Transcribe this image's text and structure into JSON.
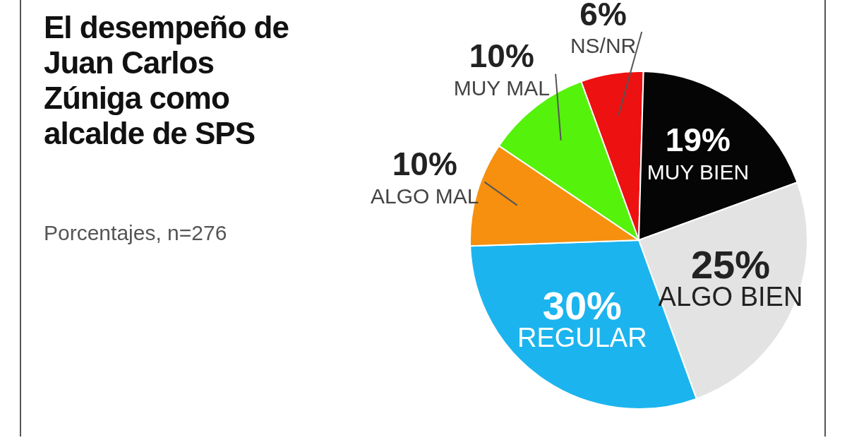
{
  "chart_data": {
    "type": "pie",
    "title": "El desempeño de Juan Carlos Zúniga como alcalde de SPS",
    "subtitle": "Porcentajes, n=276",
    "categories": [
      "NS/NR",
      "MUY BIEN",
      "ALGO BIEN",
      "REGULAR",
      "ALGO MAL",
      "MUY MAL"
    ],
    "values": [
      6,
      19,
      25,
      30,
      10,
      10
    ],
    "value_labels": [
      "6%",
      "19%",
      "25%",
      "30%",
      "10%",
      "10%"
    ],
    "colors": [
      "#ee1111",
      "#050505",
      "#e3e3e3",
      "#1cb4ee",
      "#f7900f",
      "#55f20c"
    ],
    "legend": false
  }
}
